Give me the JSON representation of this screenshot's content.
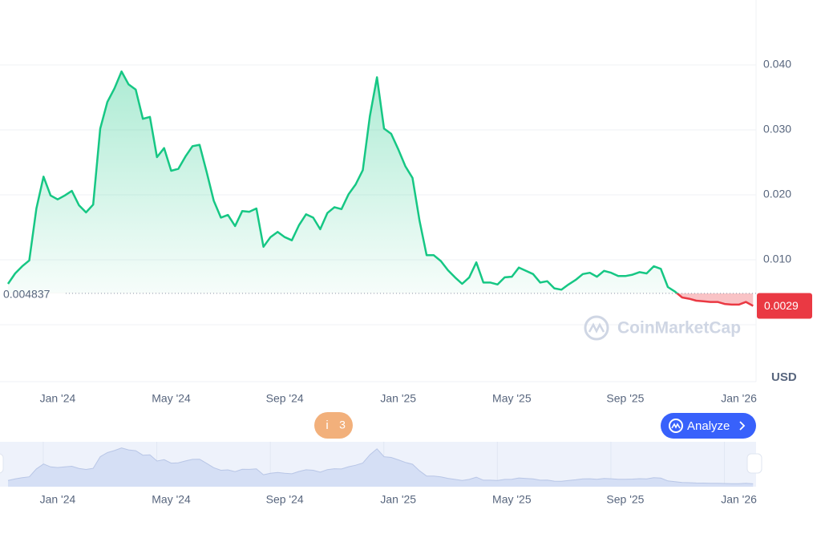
{
  "chart_data": {
    "type": "line",
    "color": "#16c784",
    "color_down": "#ea3943",
    "baseline": 0.004837,
    "categories": [
      null,
      null,
      null,
      null,
      null,
      null,
      null,
      "Jan '24",
      null,
      null,
      null,
      null,
      null,
      null,
      null,
      null,
      null,
      null,
      null,
      null,
      null,
      null,
      null,
      "May '24",
      null,
      null,
      null,
      null,
      null,
      null,
      null,
      null,
      null,
      null,
      null,
      null,
      null,
      null,
      null,
      "Sep '24",
      null,
      null,
      null,
      null,
      null,
      null,
      null,
      null,
      null,
      null,
      null,
      null,
      null,
      null,
      null,
      "Jan '25",
      null,
      null,
      null,
      null,
      null,
      null,
      null,
      null,
      null,
      null,
      null,
      null,
      null,
      null,
      null,
      "May '25",
      null,
      null,
      null,
      null,
      null,
      null,
      null,
      null,
      null,
      null,
      null,
      null,
      null,
      null,
      null,
      "Sep '25",
      null,
      null,
      null,
      null,
      null,
      null,
      null,
      null,
      null,
      null,
      null,
      null,
      null,
      null,
      null,
      "Jan '26",
      null,
      null
    ],
    "values": [
      0.0063,
      0.0079,
      0.009,
      0.0099,
      0.0179,
      0.0228,
      0.0199,
      0.0193,
      0.0199,
      0.0206,
      0.0184,
      0.0173,
      0.0185,
      0.0302,
      0.0343,
      0.0364,
      0.039,
      0.037,
      0.0362,
      0.0317,
      0.032,
      0.0258,
      0.0272,
      0.0237,
      0.024,
      0.0259,
      0.0275,
      0.0277,
      0.0235,
      0.0191,
      0.0165,
      0.0169,
      0.0152,
      0.0175,
      0.0174,
      0.0179,
      0.012,
      0.0135,
      0.0143,
      0.0135,
      0.013,
      0.0153,
      0.017,
      0.0165,
      0.0147,
      0.0172,
      0.0181,
      0.0178,
      0.0201,
      0.0216,
      0.0238,
      0.0321,
      0.0381,
      0.0302,
      0.0294,
      0.027,
      0.0244,
      0.0226,
      0.016,
      0.0107,
      0.0107,
      0.0098,
      0.0084,
      0.0073,
      0.0063,
      0.0073,
      0.0096,
      0.0065,
      0.0065,
      0.0062,
      0.0073,
      0.0074,
      0.0088,
      0.0083,
      0.0078,
      0.0065,
      0.0067,
      0.0056,
      0.0054,
      0.0062,
      0.0069,
      0.0078,
      0.008,
      0.0074,
      0.0083,
      0.008,
      0.0075,
      0.0075,
      0.0077,
      0.0081,
      0.0079,
      0.009,
      0.0086,
      0.0058,
      0.0051,
      0.0042,
      0.004,
      0.0037,
      0.0036,
      0.0035,
      0.0035,
      0.0032,
      0.0031,
      0.0031,
      0.0035,
      0.0029
    ],
    "ylim": [
      0,
      0.05
    ],
    "yticks": [
      {
        "value": 0.01,
        "label": "0.010"
      },
      {
        "value": 0.02,
        "label": "0.020"
      },
      {
        "value": 0.03,
        "label": "0.030"
      },
      {
        "value": 0.04,
        "label": "0.040"
      }
    ],
    "grid": true,
    "currency": "USD",
    "watermark": "CoinMarketCap",
    "button": "Analyze",
    "events_count": 3
  }
}
